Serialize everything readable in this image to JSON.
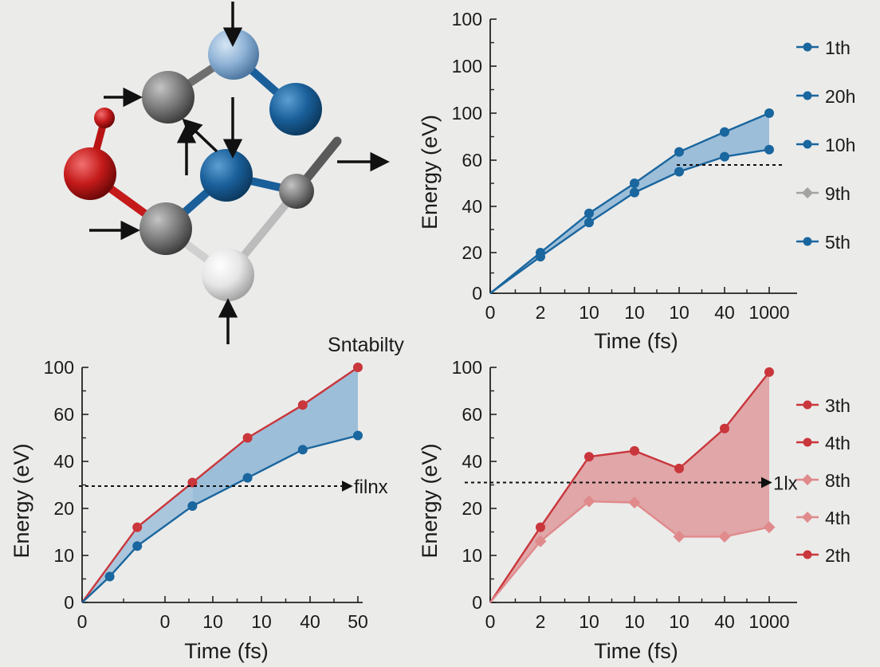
{
  "colors": {
    "blue": "#1a669e",
    "blue_fill": "#8fb6d6",
    "red": "#c9363b",
    "red_fill": "#dc8f91",
    "pink": "#e08a8c",
    "gray_marker": "#a3a3a3",
    "atom_red": "#c41a1a",
    "atom_gray": "#7c7c7c",
    "atom_lightblue": "#8fb2d6",
    "atom_blue": "#1a5f9a",
    "atom_white": "#e6e6e6"
  },
  "molecule": {
    "atoms": [
      "red-atom",
      "gray-atom",
      "light-blue-atom",
      "blue-atom",
      "blue-atom",
      "gray-atom",
      "gray-atom",
      "white-atom"
    ],
    "arrows": [
      "arrow-down",
      "arrow-right",
      "arrow-diagonal",
      "arrow-up",
      "arrow-down",
      "arrow-right",
      "arrow-up",
      "arrow-right"
    ]
  },
  "chart_data": [
    {
      "type": "line",
      "panel": "top-right",
      "title": "",
      "xlabel": "Time (fs)",
      "ylabel": "Energy (eV)",
      "x_ticks": [
        "0",
        "2",
        "10",
        "10",
        "10",
        "40",
        "1000"
      ],
      "y_ticks": [
        "0",
        "20",
        "40",
        "60",
        "100",
        "100",
        "100"
      ],
      "series": [
        {
          "values": [
            0,
            20,
            37,
            50,
            67,
            84,
            100
          ]
        },
        {
          "values": [
            0,
            18,
            33,
            46,
            55,
            63,
            69
          ]
        }
      ],
      "fill_between": true,
      "reference_line": {
        "style": "dashed",
        "y": 56,
        "x_from": 4,
        "x_to": 6.25
      },
      "legend": {
        "position": "right",
        "entries": [
          {
            "label": "1th",
            "marker": "circle",
            "color": "#1a669e"
          },
          {
            "label": "20h",
            "marker": "circle",
            "color": "#1a669e"
          },
          {
            "label": "10h",
            "marker": "circle",
            "color": "#1a669e"
          },
          {
            "label": "9th",
            "marker": "diamond",
            "color": "#a3a3a3"
          },
          {
            "label": "5th",
            "marker": "circle",
            "color": "#1a669e"
          }
        ]
      }
    },
    {
      "type": "line",
      "panel": "bottom-left",
      "title": "Sntabilty",
      "xlabel": "Time (fs)",
      "ylabel": "Energy (eV)",
      "x_ticks": [
        "0",
        "0",
        "10",
        "10",
        "40",
        "50"
      ],
      "y_ticks": [
        "0",
        "10",
        "20",
        "40",
        "60",
        "100"
      ],
      "series": [
        {
          "x": [
            0,
            2,
            4,
            6,
            8,
            10
          ],
          "values": [
            0,
            16,
            31,
            50,
            68,
            100
          ]
        },
        {
          "x": [
            0,
            1,
            2,
            4,
            6,
            8,
            10
          ],
          "values": [
            0,
            5.5,
            12,
            21,
            33,
            45,
            51
          ]
        }
      ],
      "fill_lower_end": 42,
      "reference_line": {
        "style": "dashed",
        "y": 29.5,
        "label": "filnx"
      }
    },
    {
      "type": "line",
      "panel": "bottom-right",
      "title": "",
      "xlabel": "Time (fs)",
      "ylabel": "Energy (eV)",
      "x_ticks": [
        "0",
        "2",
        "10",
        "10",
        "10",
        "40",
        "1000"
      ],
      "y_ticks": [
        "0",
        "10",
        "20",
        "40",
        "60",
        "100"
      ],
      "series": [
        {
          "values": [
            0,
            16,
            42,
            44.5,
            37,
            54,
            96
          ]
        },
        {
          "values": [
            0,
            13,
            23,
            22.5,
            14,
            14,
            16
          ]
        }
      ],
      "fill_between": true,
      "reference_line": {
        "style": "dashed",
        "y": 31,
        "label": "1lx"
      },
      "legend": {
        "position": "right",
        "entries": [
          {
            "label": "3th",
            "marker": "circle",
            "color": "#c9363b"
          },
          {
            "label": "4th",
            "marker": "circle",
            "color": "#c9363b"
          },
          {
            "label": "8th",
            "marker": "diamond",
            "color": "#e08a8c"
          },
          {
            "label": "4th",
            "marker": "diamond",
            "color": "#e08a8c"
          },
          {
            "label": "2th",
            "marker": "circle",
            "color": "#c9363b"
          }
        ]
      }
    }
  ]
}
